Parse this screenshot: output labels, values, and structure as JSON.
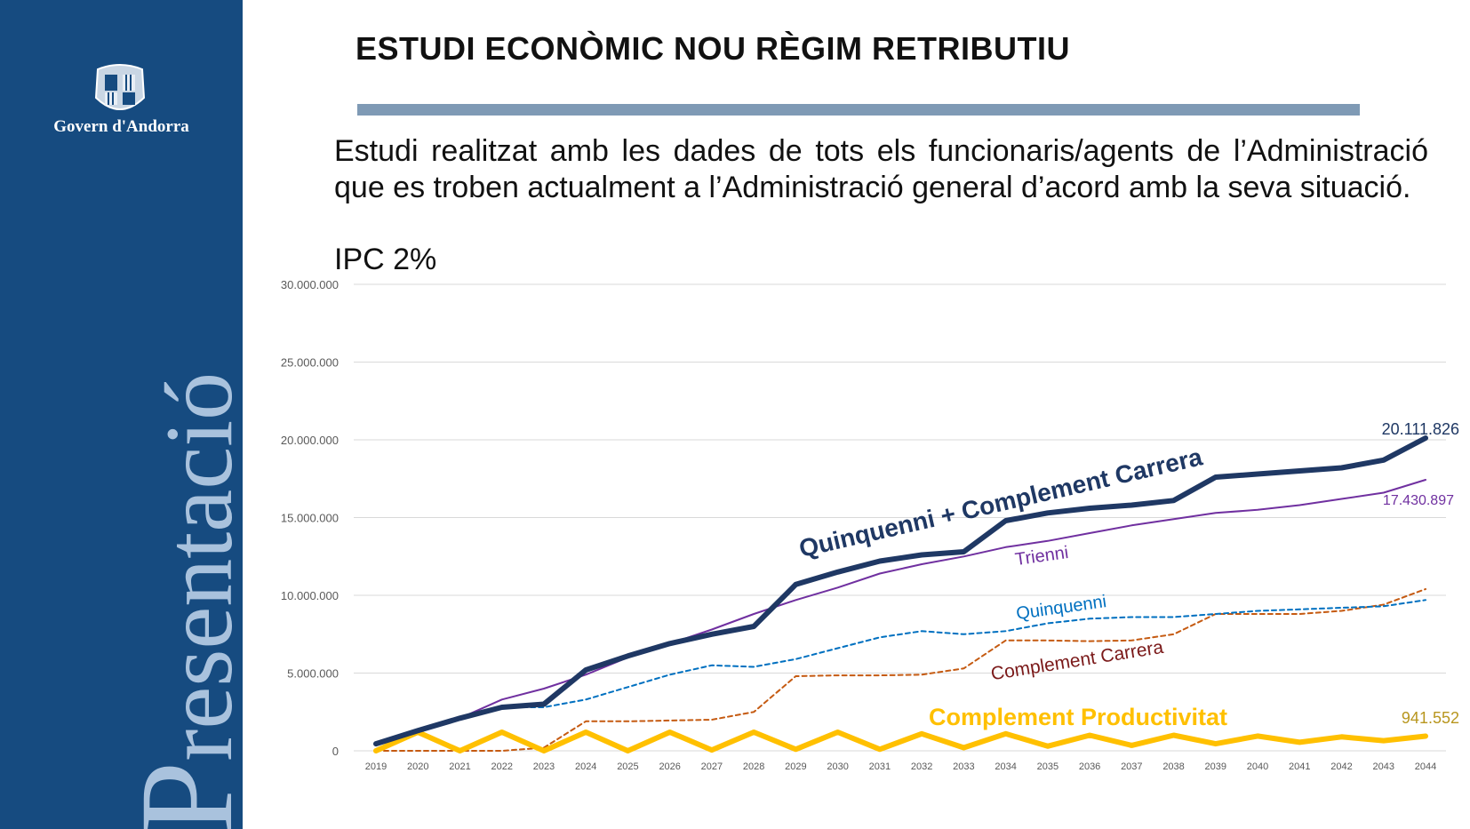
{
  "sidebar": {
    "organization": "Govern d'Andorra",
    "vertical_label_initial": "P",
    "vertical_label_rest": "resentació"
  },
  "header": {
    "title": "ESTUDI ECONÒMIC NOU RÈGIM RETRIBUTIU"
  },
  "body": {
    "paragraph": "Estudi realitzat amb les dades de tots els funcionaris/agents de l’Administració que es troben actualment a l’Administració general d’acord amb la seva situació.",
    "ipc": "IPC 2%"
  },
  "colors": {
    "sidebar": "#164b80",
    "total": "#1f3864",
    "trienni": "#7030a0",
    "quinquenni": "#0070c0",
    "carrera": "#c55a11",
    "carrera_label": "#7b1a1a",
    "productivitat": "#ffc000"
  },
  "chart_data": {
    "type": "line",
    "title": "",
    "xlabel": "",
    "ylabel": "",
    "ylim": [
      0,
      30000000
    ],
    "grid": true,
    "yticks": [
      "0",
      "5.000.000",
      "10.000.000",
      "15.000.000",
      "20.000.000",
      "25.000.000",
      "30.000.000"
    ],
    "x": [
      "2019",
      "2020",
      "2021",
      "2022",
      "2023",
      "2024",
      "2025",
      "2026",
      "2027",
      "2028",
      "2029",
      "2030",
      "2031",
      "2032",
      "2033",
      "2034",
      "2035",
      "2036",
      "2037",
      "2038",
      "2039",
      "2040",
      "2041",
      "2042",
      "2043",
      "2044"
    ],
    "series": [
      {
        "key": "total",
        "name": "Quinquenni + Complement Carrera",
        "color": "#1f3864",
        "end_label": "20.111.826",
        "values": [
          450000,
          1300000,
          2100000,
          2800000,
          3000000,
          5200000,
          6100000,
          6900000,
          7500000,
          8000000,
          10700000,
          11500000,
          12200000,
          12600000,
          12800000,
          14800000,
          15300000,
          15600000,
          15800000,
          16100000,
          17600000,
          17800000,
          18000000,
          18200000,
          18700000,
          20111826
        ]
      },
      {
        "key": "trienni",
        "name": "Trienni",
        "color": "#7030a0",
        "end_label": "17.430.897",
        "values": [
          450000,
          1300000,
          2100000,
          3300000,
          4000000,
          4900000,
          6000000,
          6900000,
          7800000,
          8800000,
          9700000,
          10500000,
          11400000,
          12000000,
          12500000,
          13100000,
          13500000,
          14000000,
          14500000,
          14900000,
          15300000,
          15500000,
          15800000,
          16200000,
          16600000,
          17430897
        ]
      },
      {
        "key": "quinquenni",
        "name": "Quinquenni",
        "color": "#0070c0",
        "values": [
          450000,
          1300000,
          2100000,
          2800000,
          2800000,
          3300000,
          4100000,
          4900000,
          5500000,
          5400000,
          5900000,
          6600000,
          7300000,
          7700000,
          7500000,
          7700000,
          8200000,
          8500000,
          8600000,
          8600000,
          8800000,
          9000000,
          9100000,
          9200000,
          9300000,
          9700000
        ]
      },
      {
        "key": "carrera",
        "name": "Complement Carrera",
        "color": "#c55a11",
        "values": [
          0,
          0,
          0,
          0,
          200000,
          1900000,
          1900000,
          1950000,
          2000000,
          2500000,
          4800000,
          4850000,
          4850000,
          4900000,
          5300000,
          7100000,
          7100000,
          7050000,
          7100000,
          7500000,
          8800000,
          8800000,
          8800000,
          9000000,
          9400000,
          10400000
        ]
      },
      {
        "key": "productivitat",
        "name": "Complement Productivitat",
        "color": "#ffc000",
        "end_label": "941.552",
        "values": [
          0,
          1200000,
          0,
          1200000,
          0,
          1200000,
          0,
          1200000,
          50000,
          1200000,
          100000,
          1200000,
          100000,
          1100000,
          200000,
          1100000,
          300000,
          1000000,
          350000,
          1000000,
          450000,
          950000,
          550000,
          900000,
          650000,
          941552
        ]
      }
    ]
  }
}
